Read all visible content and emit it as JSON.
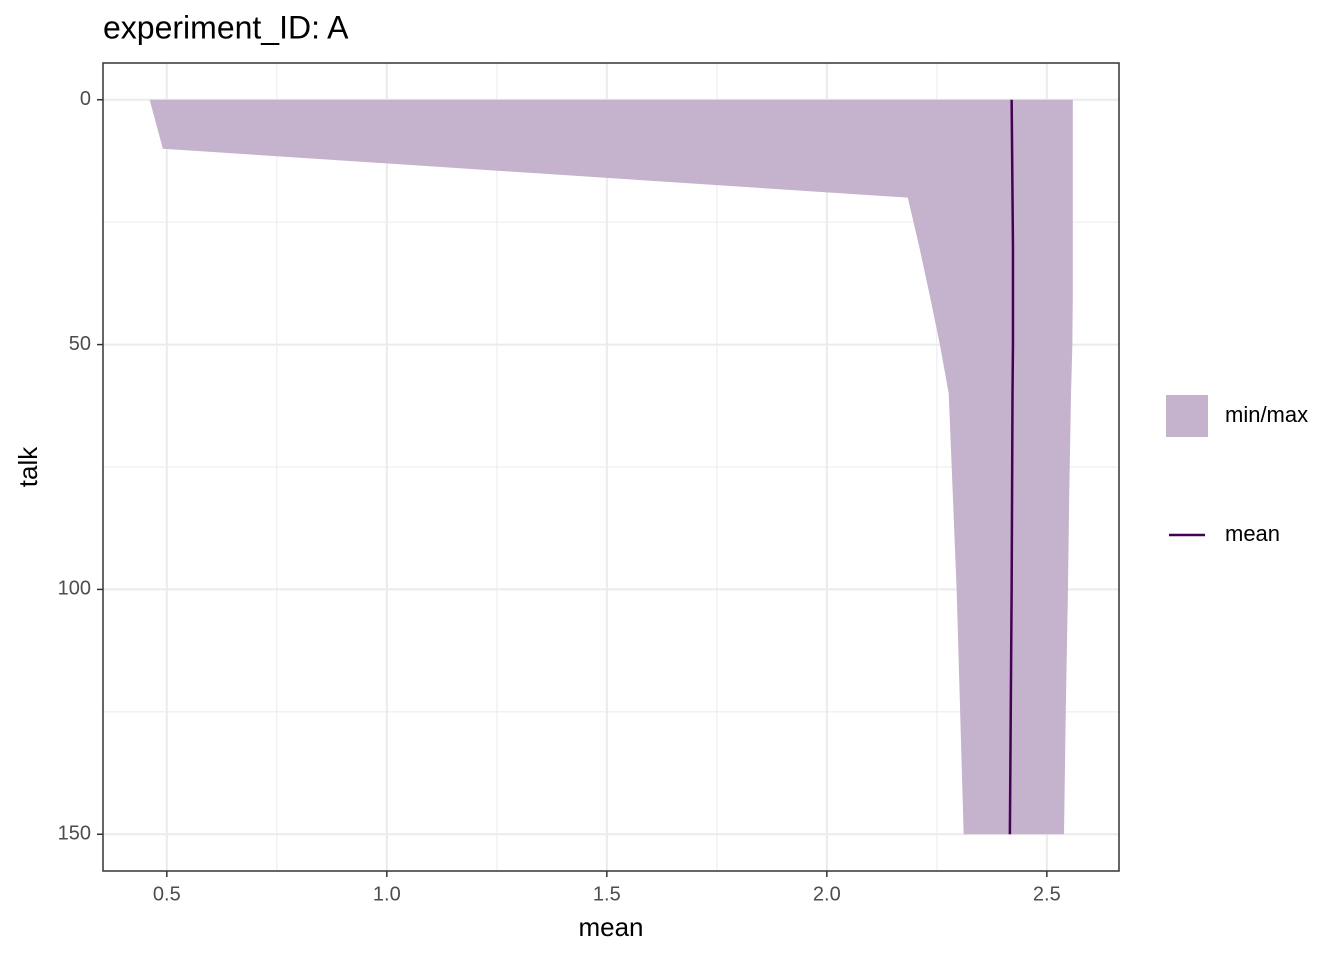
{
  "chart_data": {
    "type": "ribbon-line",
    "title": "experiment_ID: A",
    "x_label": "mean",
    "y_label": "talk",
    "y": [
      0,
      10,
      20,
      30,
      40,
      50,
      60,
      80,
      100,
      125,
      150
    ],
    "series": [
      {
        "name": "min/max",
        "color": "#c5b2cc",
        "lower": [
          0.461,
          0.491,
          2.184,
          2.21,
          2.234,
          2.257,
          2.277,
          2.286,
          2.295,
          2.303,
          2.311
        ],
        "upper": [
          2.559,
          2.559,
          2.559,
          2.559,
          2.559,
          2.558,
          2.555,
          2.551,
          2.548,
          2.543,
          2.539
        ]
      },
      {
        "name": "mean",
        "color": "#440154",
        "values": [
          2.42,
          2.421,
          2.422,
          2.423,
          2.423,
          2.423,
          2.422,
          2.421,
          2.42,
          2.418,
          2.416
        ]
      }
    ],
    "xlim": [
      0.355,
      2.664
    ],
    "xticks": [
      0.5,
      {
        "value": 1,
        "label": "1.0"
      },
      1.5,
      {
        "value": 2,
        "label": "2.0"
      },
      2.5
    ],
    "ylim": [
      -7.5,
      157.5
    ],
    "yticks": [
      0,
      50,
      100,
      150
    ],
    "y_reverse": true,
    "grid": true,
    "minor_grid": true,
    "legend": "right"
  }
}
